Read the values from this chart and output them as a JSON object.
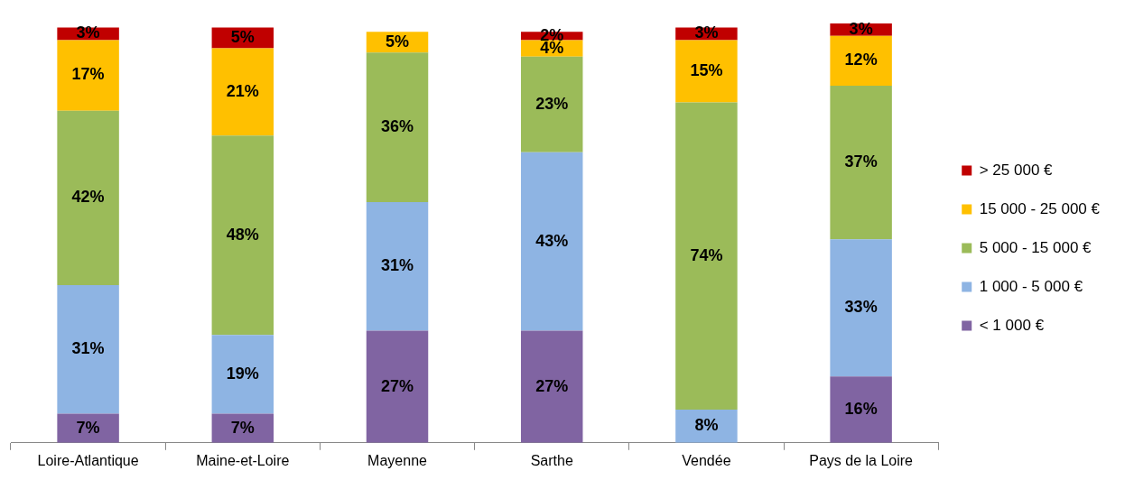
{
  "chart_data": {
    "type": "bar",
    "stacked": true,
    "categories": [
      "Loire-Atlantique",
      "Maine-et-Loire",
      "Mayenne",
      "Sarthe",
      "Vendée",
      "Pays de la Loire"
    ],
    "series": [
      {
        "name": "< 1 000 €",
        "color": "#8064a2",
        "values": [
          7,
          7,
          27,
          27,
          null,
          16
        ],
        "value_labels": [
          "7%",
          "7%",
          "27%",
          "27%",
          null,
          "16%"
        ]
      },
      {
        "name": "1 000 - 5 000 €",
        "color": "#8eb4e3",
        "values": [
          31,
          19,
          31,
          43,
          8,
          33
        ],
        "value_labels": [
          "31%",
          "19%",
          "31%",
          "43%",
          "8%",
          "33%"
        ]
      },
      {
        "name": "5 000 - 15 000 €",
        "color": "#9bbb59",
        "values": [
          42,
          48,
          36,
          23,
          74,
          37
        ],
        "value_labels": [
          "42%",
          "48%",
          "36%",
          "23%",
          "74%",
          "37%"
        ]
      },
      {
        "name": "15 000 - 25 000 €",
        "color": "#ffc000",
        "values": [
          17,
          21,
          5,
          4,
          15,
          12
        ],
        "value_labels": [
          "17%",
          "21%",
          "5%",
          "4%",
          "15%",
          "12%"
        ]
      },
      {
        "name": "> 25 000 €",
        "color": "#c00000",
        "values": [
          3,
          5,
          null,
          2,
          3,
          3
        ],
        "value_labels": [
          "3%",
          "5%",
          null,
          "2%",
          "3%",
          "3%"
        ]
      }
    ],
    "tick_labels": "x",
    "legend": "right",
    "grid": false
  }
}
